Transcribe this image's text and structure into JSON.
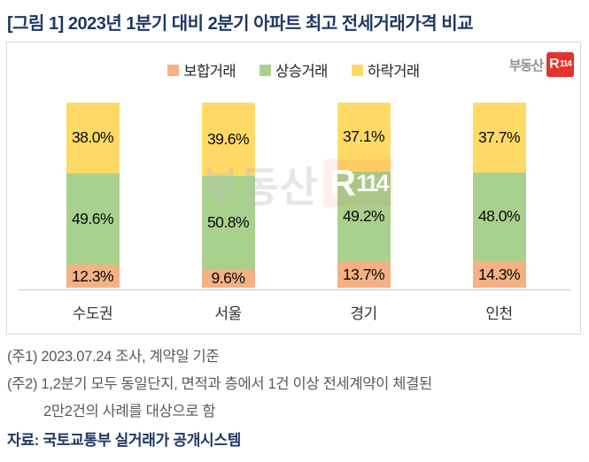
{
  "title": "[그림 1] 2023년 1분기 대비 2분기 아파트 최고 전세거래가격 비교",
  "logo": {
    "prefix": "부동산",
    "badge_r": "R",
    "badge_num": "114"
  },
  "watermark": {
    "text": "부동산",
    "badge_r": "R",
    "badge_num": "114"
  },
  "chart_data": {
    "type": "bar",
    "stacked": true,
    "unit": "%",
    "title": "2023년 1분기 대비 2분기 아파트 최고 전세거래가격 비교",
    "categories": [
      "수도권",
      "서울",
      "경기",
      "인천"
    ],
    "series": [
      {
        "name": "보합거래",
        "color": "#F4B183",
        "values": [
          12.3,
          9.6,
          13.7,
          14.3
        ]
      },
      {
        "name": "상승거래",
        "color": "#A9D18E",
        "values": [
          49.6,
          50.8,
          49.2,
          48.0
        ]
      },
      {
        "name": "하락거래",
        "color": "#FFD966",
        "values": [
          38.0,
          39.6,
          37.1,
          37.7
        ]
      }
    ],
    "ylim": [
      0,
      100
    ],
    "legend_position": "top",
    "grid": false,
    "value_labels": true
  },
  "notes": {
    "note1": "(주1) 2023.07.24 조사, 계약일 기준",
    "note2_line1": "(주2) 1,2분기 모두 동일단지, 면적과 층에서 1건 이상 전세계약이 체결된",
    "note2_line2": "2만2건의 사례를 대상으로 함",
    "source": "자료: 국토교통부 실거래가 공개시스템"
  },
  "colors": {
    "title_navy": "#1F3864",
    "note_gray": "#595959",
    "panel_border": "#D9D9D9",
    "axis_line": "#C9C9C9",
    "logo_red": "#E63329",
    "logo_gray": "#8F8F8F"
  }
}
